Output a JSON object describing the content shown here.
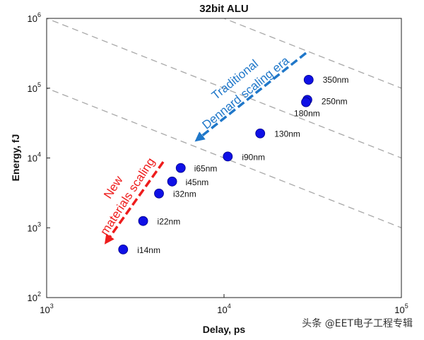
{
  "chart_data": {
    "type": "scatter",
    "title": "32bit ALU",
    "xlabel": "Delay, ps",
    "ylabel": "Energy, fJ",
    "xscale": "log",
    "yscale": "log",
    "xlim": [
      1000,
      100000
    ],
    "ylim": [
      100,
      1000000
    ],
    "x_ticks": [
      {
        "base": "10",
        "exp": "3"
      },
      {
        "base": "10",
        "exp": "4"
      },
      {
        "base": "10",
        "exp": "5"
      }
    ],
    "y_ticks": [
      {
        "base": "10",
        "exp": "2"
      },
      {
        "base": "10",
        "exp": "3"
      },
      {
        "base": "10",
        "exp": "4"
      },
      {
        "base": "10",
        "exp": "5"
      },
      {
        "base": "10",
        "exp": "6"
      }
    ],
    "points": [
      {
        "label": "350nm",
        "x": 30000,
        "y": 132000
      },
      {
        "label": "250nm",
        "x": 29500,
        "y": 68000
      },
      {
        "label": "180nm",
        "x": 29000,
        "y": 63000
      },
      {
        "label": "130nm",
        "x": 16000,
        "y": 22500
      },
      {
        "label": "i90nm",
        "x": 10500,
        "y": 10500
      },
      {
        "label": "i65nm",
        "x": 5700,
        "y": 7200
      },
      {
        "label": "i45nm",
        "x": 5100,
        "y": 4600
      },
      {
        "label": "i32nm",
        "x": 4300,
        "y": 3100
      },
      {
        "label": "i22nm",
        "x": 3500,
        "y": 1250
      },
      {
        "label": "i14nm",
        "x": 2700,
        "y": 490
      }
    ],
    "marker_color": "#0f10e6",
    "iso_energy_delay_lines": "dashed gray, slope -1",
    "annotations": [
      {
        "text_lines": [
          "Traditional",
          "Dennard scaling era"
        ],
        "color": "#1f77c9"
      },
      {
        "text_lines": [
          "New",
          "materials scaling"
        ],
        "color": "#ee1c1c"
      }
    ],
    "grid": false
  },
  "watermark": "头条 @EET电子工程专辑"
}
